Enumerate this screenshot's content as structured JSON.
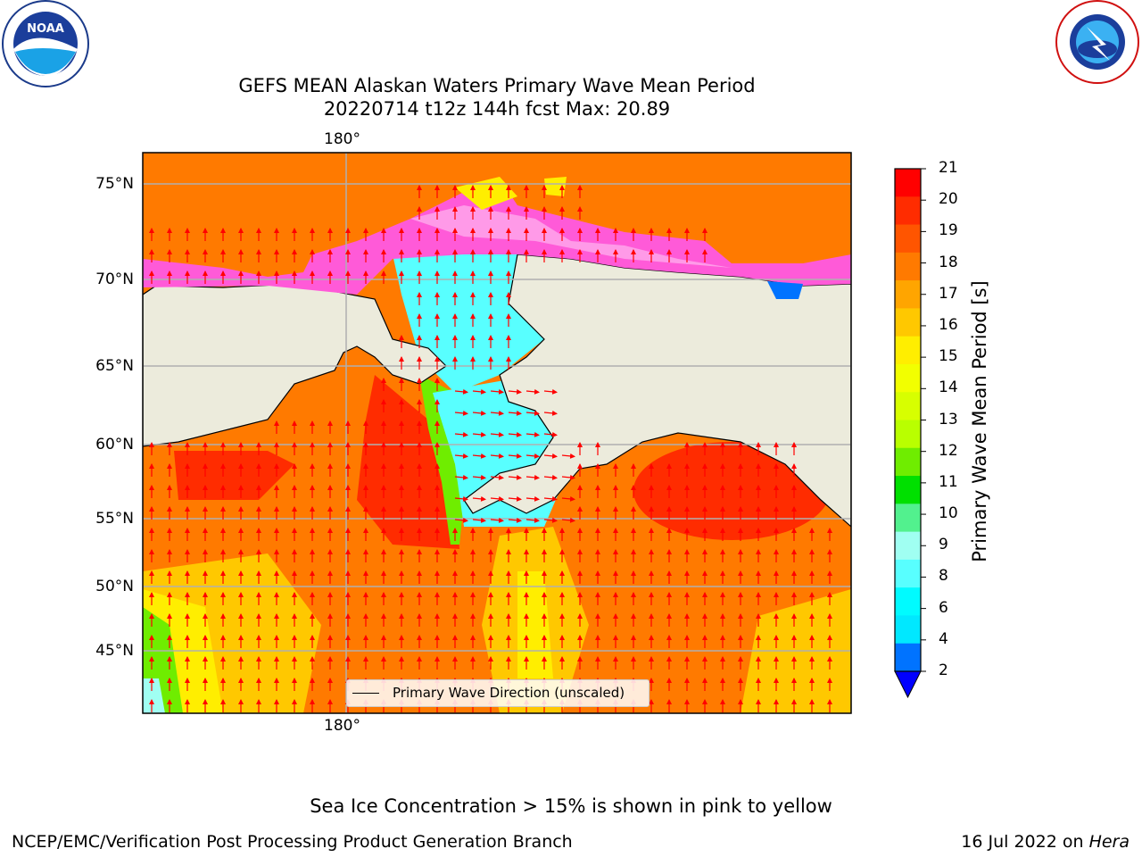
{
  "header": {
    "title_line1": "GEFS MEAN Alaskan Waters Primary Wave Mean Period",
    "title_line2": "20220714 t12z 144h fcst   Max: 20.89"
  },
  "logos": {
    "left_name": "NOAA",
    "left_ring_text": "NATIONAL OCEANIC AND ATMOSPHERIC ADMINISTRATION · U.S. DEPARTMENT OF COMMERCE",
    "right_ring_text": "NATIONAL WEATHER SERVICE"
  },
  "map": {
    "lon_label_top": "180°",
    "lon_label_bottom": "180°",
    "lat_labels": [
      "75°N",
      "70°N",
      "65°N",
      "60°N",
      "55°N",
      "50°N",
      "45°N"
    ],
    "legend_label": "Primary Wave Direction (unscaled)",
    "land_color": "#ecebdc",
    "arrow_color": "#ff0000"
  },
  "colorbar": {
    "title": "Primary Wave Mean Period [s]",
    "tick_labels": [
      "21",
      "20",
      "19",
      "18",
      "17",
      "16",
      "15",
      "14",
      "13",
      "12",
      "11",
      "10",
      "9",
      "8",
      "6",
      "4",
      "2"
    ],
    "colors_top_to_bottom": [
      "#ff0000",
      "#ff2c00",
      "#ff5500",
      "#ff7a00",
      "#ffa500",
      "#ffc800",
      "#ffee00",
      "#f2ff00",
      "#d7ff00",
      "#b9ff00",
      "#6fed00",
      "#00e000",
      "#52f18e",
      "#a0fff2",
      "#58ffff",
      "#00fbff",
      "#00e8ff",
      "#0073ff"
    ],
    "under_color": "#0000ff"
  },
  "footer": {
    "note": "Sea Ice Concentration > 15% is shown in pink to yellow",
    "left": "NCEP/EMC/Verification Post Processing Product Generation Branch",
    "right_prefix": "16 Jul 2022 on ",
    "right_italic": "Hera"
  }
}
